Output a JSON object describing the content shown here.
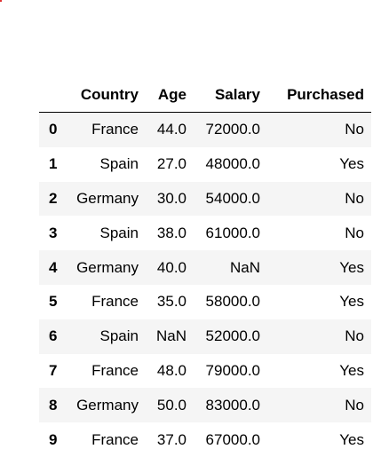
{
  "accent_color": "#e03030",
  "table": {
    "columns": [
      "",
      "Country",
      "Age",
      "Salary",
      "Purchased"
    ],
    "rows": [
      {
        "index": "0",
        "Country": "France",
        "Age": "44.0",
        "Salary": "72000.0",
        "Purchased": "No"
      },
      {
        "index": "1",
        "Country": "Spain",
        "Age": "27.0",
        "Salary": "48000.0",
        "Purchased": "Yes"
      },
      {
        "index": "2",
        "Country": "Germany",
        "Age": "30.0",
        "Salary": "54000.0",
        "Purchased": "No"
      },
      {
        "index": "3",
        "Country": "Spain",
        "Age": "38.0",
        "Salary": "61000.0",
        "Purchased": "No"
      },
      {
        "index": "4",
        "Country": "Germany",
        "Age": "40.0",
        "Salary": "NaN",
        "Purchased": "Yes"
      },
      {
        "index": "5",
        "Country": "France",
        "Age": "35.0",
        "Salary": "58000.0",
        "Purchased": "Yes"
      },
      {
        "index": "6",
        "Country": "Spain",
        "Age": "NaN",
        "Salary": "52000.0",
        "Purchased": "No"
      },
      {
        "index": "7",
        "Country": "France",
        "Age": "48.0",
        "Salary": "79000.0",
        "Purchased": "Yes"
      },
      {
        "index": "8",
        "Country": "Germany",
        "Age": "50.0",
        "Salary": "83000.0",
        "Purchased": "No"
      },
      {
        "index": "9",
        "Country": "France",
        "Age": "37.0",
        "Salary": "67000.0",
        "Purchased": "Yes"
      }
    ]
  }
}
